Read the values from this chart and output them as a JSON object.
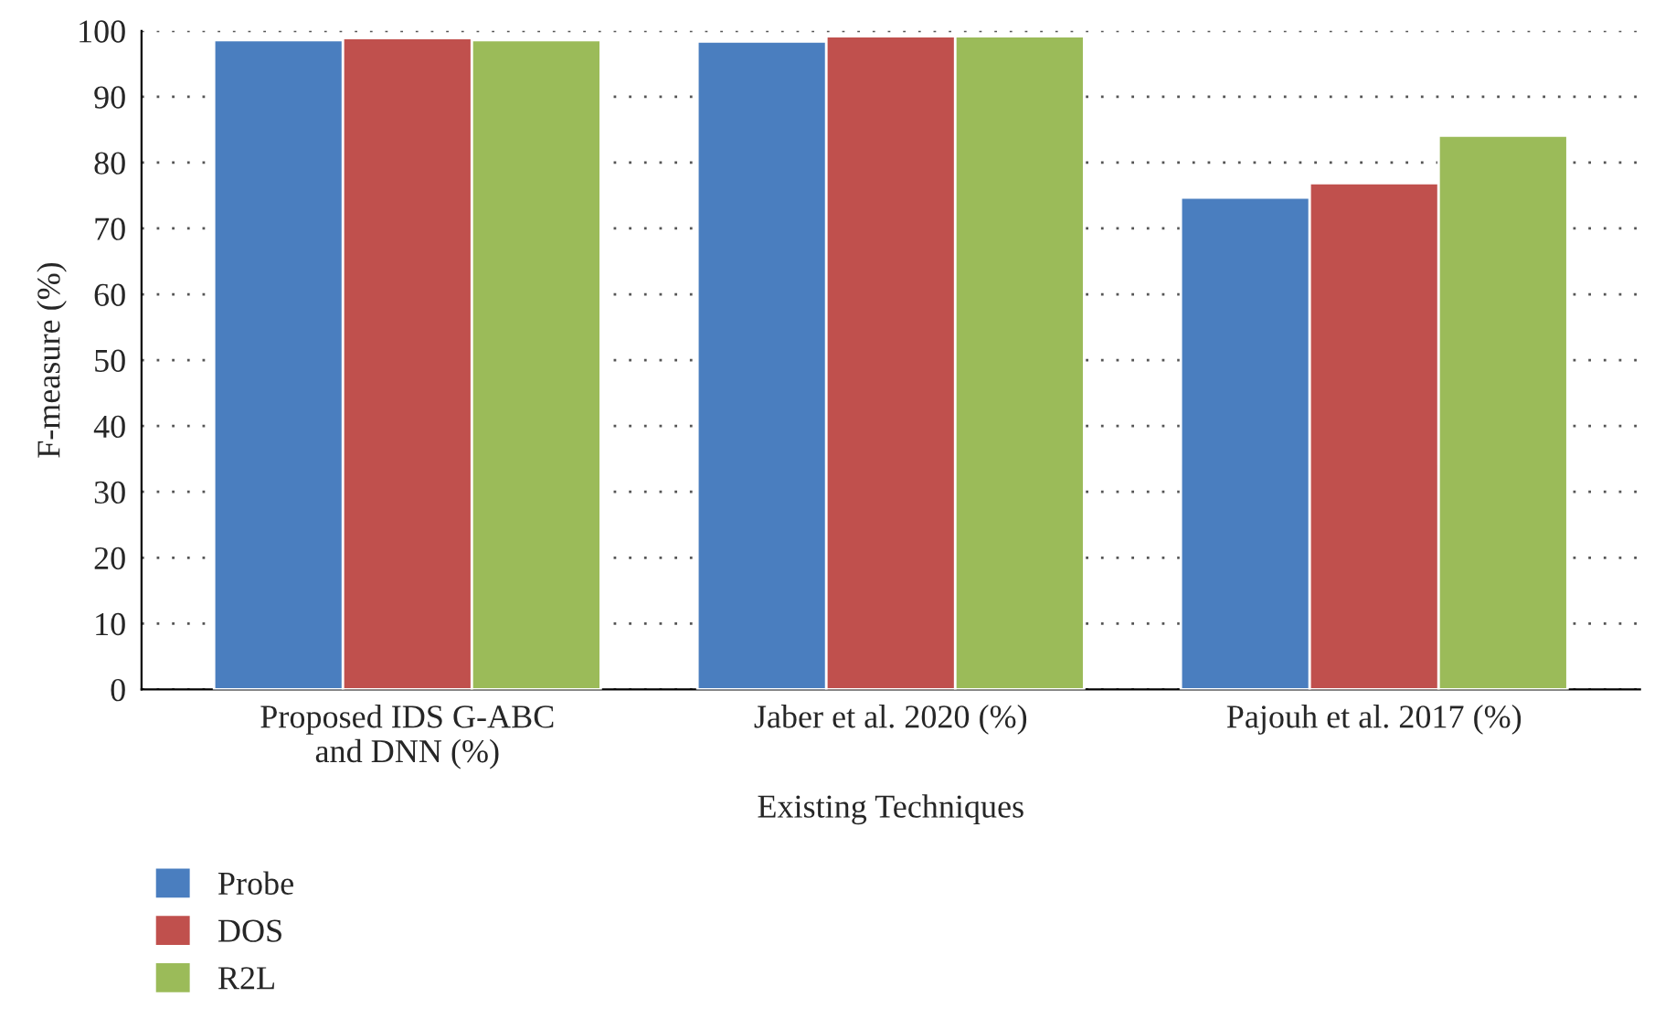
{
  "chart_data": {
    "type": "bar",
    "xlabel": "Existing Techniques",
    "ylabel": "F-measure (%)",
    "categories": [
      "Proposed IDS G-ABC\nand DNN (%)",
      "Jaber et al. 2020 (%)",
      "Pajouh et al. 2017 (%)"
    ],
    "series": [
      {
        "name": "Probe",
        "color": "#4a7ebf",
        "values": [
          98.6,
          98.4,
          74.7
        ]
      },
      {
        "name": "DOS",
        "color": "#c0504d",
        "values": [
          98.9,
          99.2,
          76.9
        ]
      },
      {
        "name": "R2L",
        "color": "#9bbb59",
        "values": [
          98.6,
          99.2,
          84.1
        ]
      }
    ],
    "ylim": [
      0,
      100
    ],
    "yticks": [
      0,
      10,
      20,
      30,
      40,
      50,
      60,
      70,
      80,
      90,
      100
    ],
    "grid": "y",
    "legend": "bottom left"
  }
}
